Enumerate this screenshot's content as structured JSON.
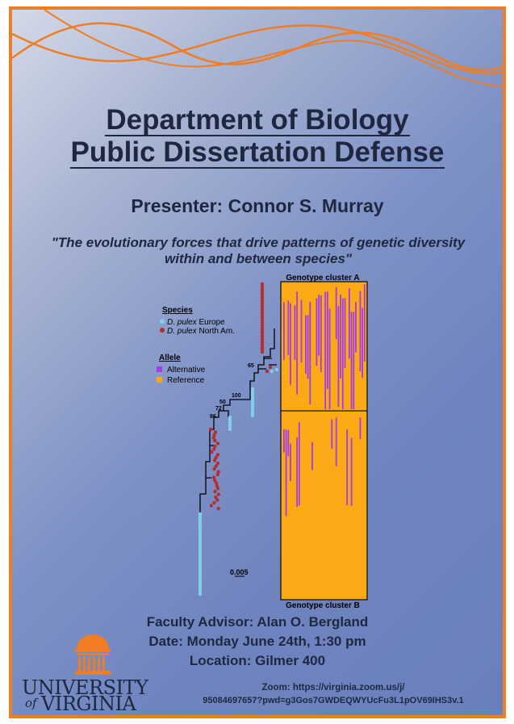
{
  "title": {
    "line1": "Department of Biology",
    "line2": "Public Dissertation Defense"
  },
  "presenter": "Presenter: Connor S. Murray",
  "quote": "\"The evolutionary forces that drive patterns of genetic diversity within and between species\"",
  "figure": {
    "cluster_a_label": "Genotype cluster A",
    "cluster_b_label": "Genotype cluster B",
    "species_heading": "Species",
    "species_1_italic": "D. pulex",
    "species_1_rest": " Europe",
    "species_2_italic": "D. pulex",
    "species_2_rest": " North Am.",
    "allele_heading": "Allele",
    "allele_1": "Alternative",
    "allele_2": "Reference",
    "bootstrap_labels": [
      "65",
      "100",
      "50",
      "72",
      "86"
    ],
    "scale_label": "0.005",
    "colors": {
      "europe": "#7fd0e8",
      "north_america": "#b22f2f",
      "alternative": "#a23ce8",
      "reference": "#fbaa16"
    }
  },
  "advisor": "Faculty Advisor: Alan O. Bergland",
  "date": "Date: Monday June 24th, 1:30 pm",
  "location": "Location: Gilmer 400",
  "zoom": {
    "line1": "Zoom: https://virginia.zoom.us/j/",
    "line2": "95084697657?pwd=g3Gos7GWDEQWYUcFu3L1pOV69IHS3v.1"
  },
  "logo": {
    "word1": "UNIVERSITY",
    "word2": "of",
    "word3": "VIRGINIA"
  },
  "accent_color": "#f07d23"
}
